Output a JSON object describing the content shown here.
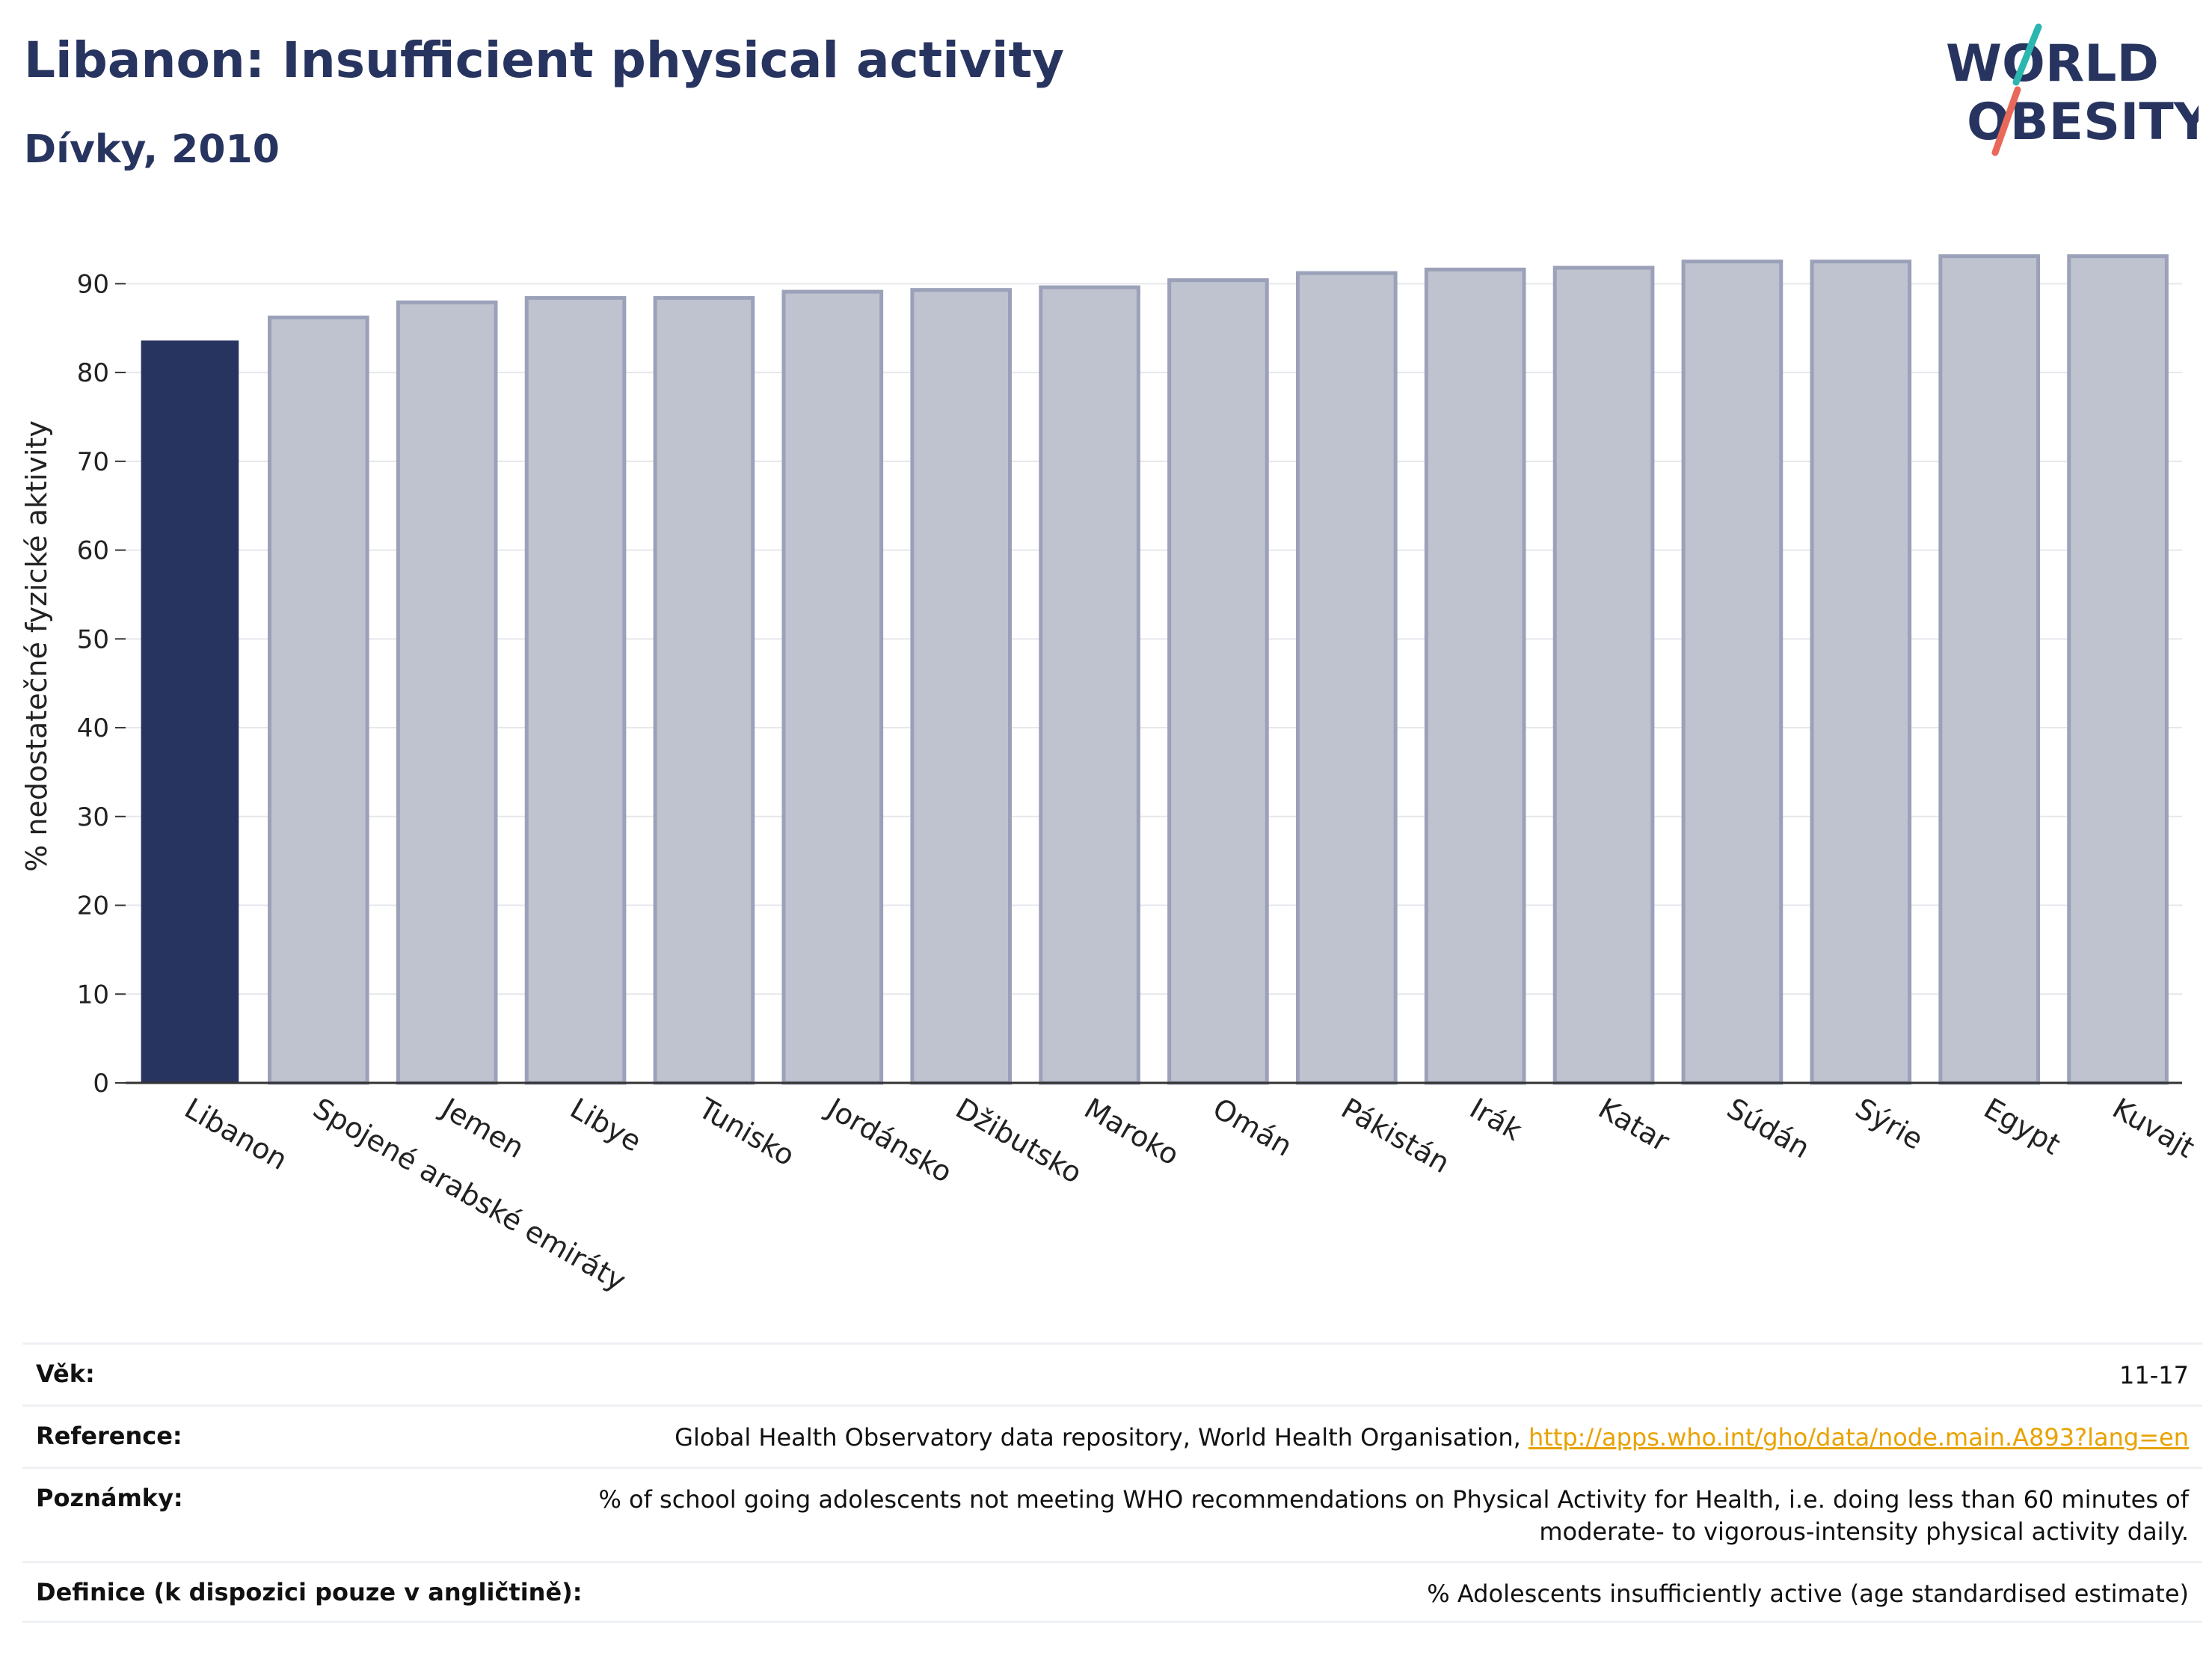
{
  "header": {
    "title": "Libanon: Insufficient physical activity",
    "subtitle": "Dívky, 2010"
  },
  "logo": {
    "line1": "WORLD",
    "line2": "OBESITY",
    "accent_teal": "#2bb6b0",
    "accent_red": "#e8685a"
  },
  "colors": {
    "highlight": "#283460",
    "bar": "#bfc2cf",
    "bar_edge": "#9ba1b8"
  },
  "chart_data": {
    "type": "bar",
    "title": "Libanon: Insufficient physical activity",
    "subtitle": "Dívky, 2010",
    "ylabel": "% nedostatečné fyzické aktivity",
    "xlabel": "",
    "ylim": [
      0,
      95
    ],
    "yticks": [
      0,
      10,
      20,
      30,
      40,
      50,
      60,
      70,
      80,
      90
    ],
    "grid": true,
    "highlight_category": "Libanon",
    "categories": [
      "Libanon",
      "Spojené arabské emiráty",
      "Jemen",
      "Libye",
      "Tunisko",
      "Jordánsko",
      "Džibutsko",
      "Maroko",
      "Omán",
      "Pákistán",
      "Irák",
      "Katar",
      "Súdán",
      "Sýrie",
      "Egypt",
      "Kuvajt"
    ],
    "values": [
      83.6,
      86.2,
      87.9,
      88.4,
      88.4,
      89.1,
      89.3,
      89.6,
      90.4,
      91.2,
      91.6,
      91.8,
      92.5,
      92.5,
      93.1,
      93.1
    ]
  },
  "meta": {
    "age_label": "Věk:",
    "age_value": "11-17",
    "reference_label": "Reference:",
    "reference_text": "Global Health Observatory data repository, World Health Organisation, ",
    "reference_link": "http://apps.who.int/gho/data/node.main.A893?lang=en",
    "notes_label": "Poznámky:",
    "notes_value": "% of school going adolescents not meeting WHO recommendations on Physical Activity for Health, i.e. doing less than 60 minutes of moderate- to vigorous-intensity physical activity daily.",
    "definition_label": "Definice (k dispozici pouze v angličtině):",
    "definition_value": "% Adolescents insufficiently active (age standardised estimate)"
  }
}
